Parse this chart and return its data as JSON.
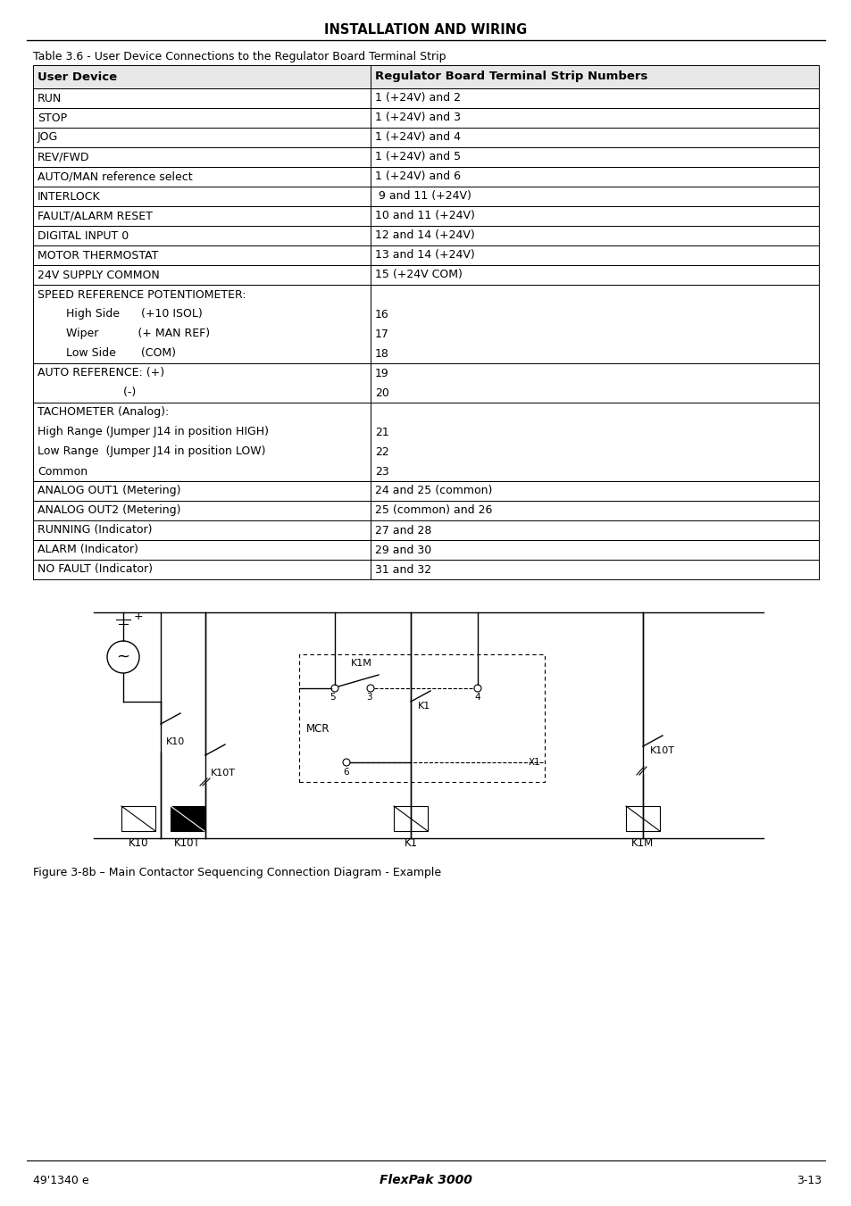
{
  "page_title": "INSTALLATION AND WIRING",
  "table_caption": "Table 3.6 - User Device Connections to the Regulator Board Terminal Strip",
  "table_headers": [
    "User Device",
    "Regulator Board Terminal Strip Numbers"
  ],
  "table_rows_left": [
    "RUN",
    "STOP",
    "JOG",
    "REV/FWD",
    "AUTO/MAN reference select",
    "INTERLOCK",
    "FAULT/ALARM RESET",
    "DIGITAL INPUT 0",
    "MOTOR THERMOSTAT",
    "24V SUPPLY COMMON"
  ],
  "table_rows_right": [
    "1 (+24V) and 2",
    "1 (+24V) and 3",
    "1 (+24V) and 4",
    "1 (+24V) and 5",
    "1 (+24V) and 6",
    " 9 and 11 (+24V)",
    "10 and 11 (+24V)",
    "12 and 14 (+24V)",
    "13 and 14 (+24V)",
    "15 (+24V COM)"
  ],
  "speed_left_lines": [
    "SPEED REFERENCE POTENTIOMETER:",
    "        High Side      (+10 ISOL)",
    "        Wiper           (+ MAN REF)",
    "        Low Side       (COM)"
  ],
  "speed_right_lines": [
    "",
    "16",
    "17",
    "18"
  ],
  "auto_left_lines": [
    "AUTO REFERENCE: (+)",
    "                        (-)"
  ],
  "auto_right_lines": [
    "19",
    "20"
  ],
  "tacho_left_lines": [
    "TACHOMETER (Analog):",
    "High Range (Jumper J14 in position HIGH)",
    "Low Range  (Jumper J14 in position LOW)",
    "Common"
  ],
  "tacho_right_lines": [
    "",
    "21",
    "22",
    "23"
  ],
  "last_rows_left": [
    "ANALOG OUT1 (Metering)",
    "ANALOG OUT2 (Metering)",
    "RUNNING (Indicator)",
    "ALARM (Indicator)",
    "NO FAULT (Indicator)"
  ],
  "last_rows_right": [
    "24 and 25 (common)",
    "25 (common) and 26",
    "27 and 28",
    "29 and 30",
    "31 and 32"
  ],
  "fig_caption": "Figure 3-8b – Main Contactor Sequencing Connection Diagram - Example",
  "footer_left": "49'1340 e",
  "footer_center": "FlexPak 3000",
  "footer_right": "3-13",
  "bg_color": "#ffffff"
}
